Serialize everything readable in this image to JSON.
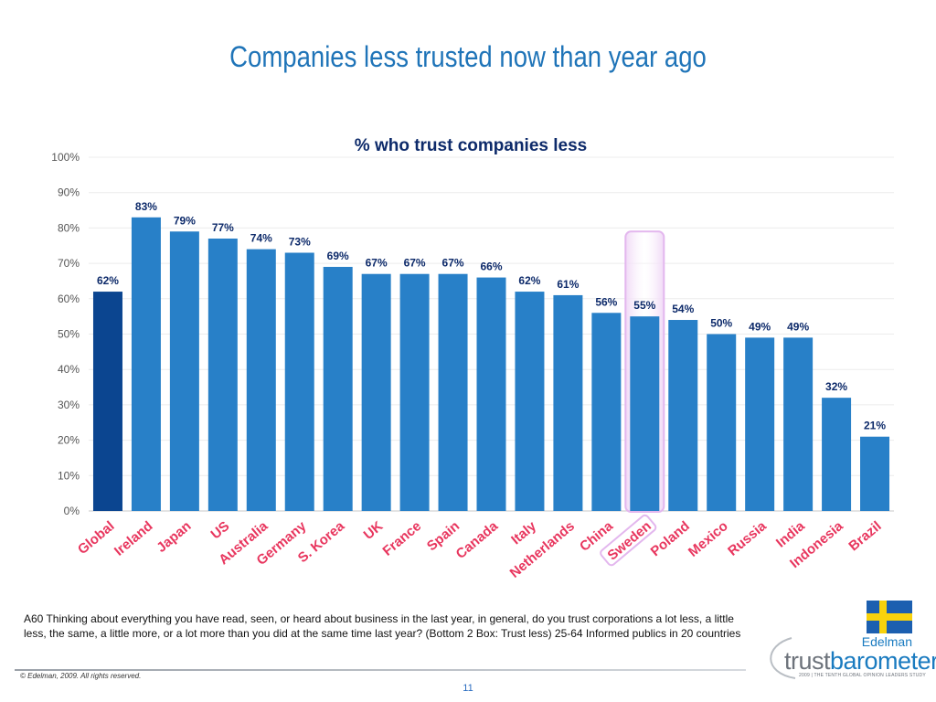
{
  "slide": {
    "title": "Companies less trusted now than year ago",
    "footnote": "A60 Thinking about everything you have read, seen, or heard about business in the last year, in general, do you trust corporations a lot less, a little less, the same, a little more, or a lot more than you did at the same time last year? (Bottom 2 Box: Trust less) 25-64 Informed publics in 20 countries",
    "copyright": "© Edelman, 2009. All rights reserved.",
    "page_number": "11"
  },
  "logo": {
    "brand": "Edelman",
    "word_part1": "trust",
    "word_part2": "barometer",
    "tagline": "2009 | THE TENTH GLOBAL OPINION LEADERS STUDY"
  },
  "colors": {
    "title": "#1f74b8",
    "bar": "#2880c8",
    "bar_highlight": "#0b4590",
    "label": "#0d2a6a",
    "axis_label": "#e8365e",
    "highlight_box": "#e3b7ee"
  },
  "chart_data": {
    "type": "bar",
    "title": "% who trust companies less",
    "xlabel": "",
    "ylabel": "",
    "ylim": [
      0,
      100
    ],
    "yticks": [
      "0%",
      "10%",
      "20%",
      "30%",
      "40%",
      "50%",
      "60%",
      "70%",
      "80%",
      "90%",
      "100%"
    ],
    "grid": true,
    "categories": [
      "Global",
      "Ireland",
      "Japan",
      "US",
      "Australia",
      "Germany",
      "S. Korea",
      "UK",
      "France",
      "Spain",
      "Canada",
      "Italy",
      "Netherlands",
      "China",
      "Sweden",
      "Poland",
      "Mexico",
      "Russia",
      "India",
      "Indonesia",
      "Brazil"
    ],
    "values": [
      62,
      83,
      79,
      77,
      74,
      73,
      69,
      67,
      67,
      67,
      66,
      62,
      61,
      56,
      55,
      54,
      50,
      49,
      49,
      32,
      21
    ],
    "data_labels": [
      "62%",
      "83%",
      "79%",
      "77%",
      "74%",
      "73%",
      "69%",
      "67%",
      "67%",
      "67%",
      "66%",
      "62%",
      "61%",
      "56%",
      "55%",
      "54%",
      "50%",
      "49%",
      "49%",
      "32%",
      "21%"
    ],
    "highlighted_bar": "Global",
    "boxed_category": "Sweden"
  }
}
